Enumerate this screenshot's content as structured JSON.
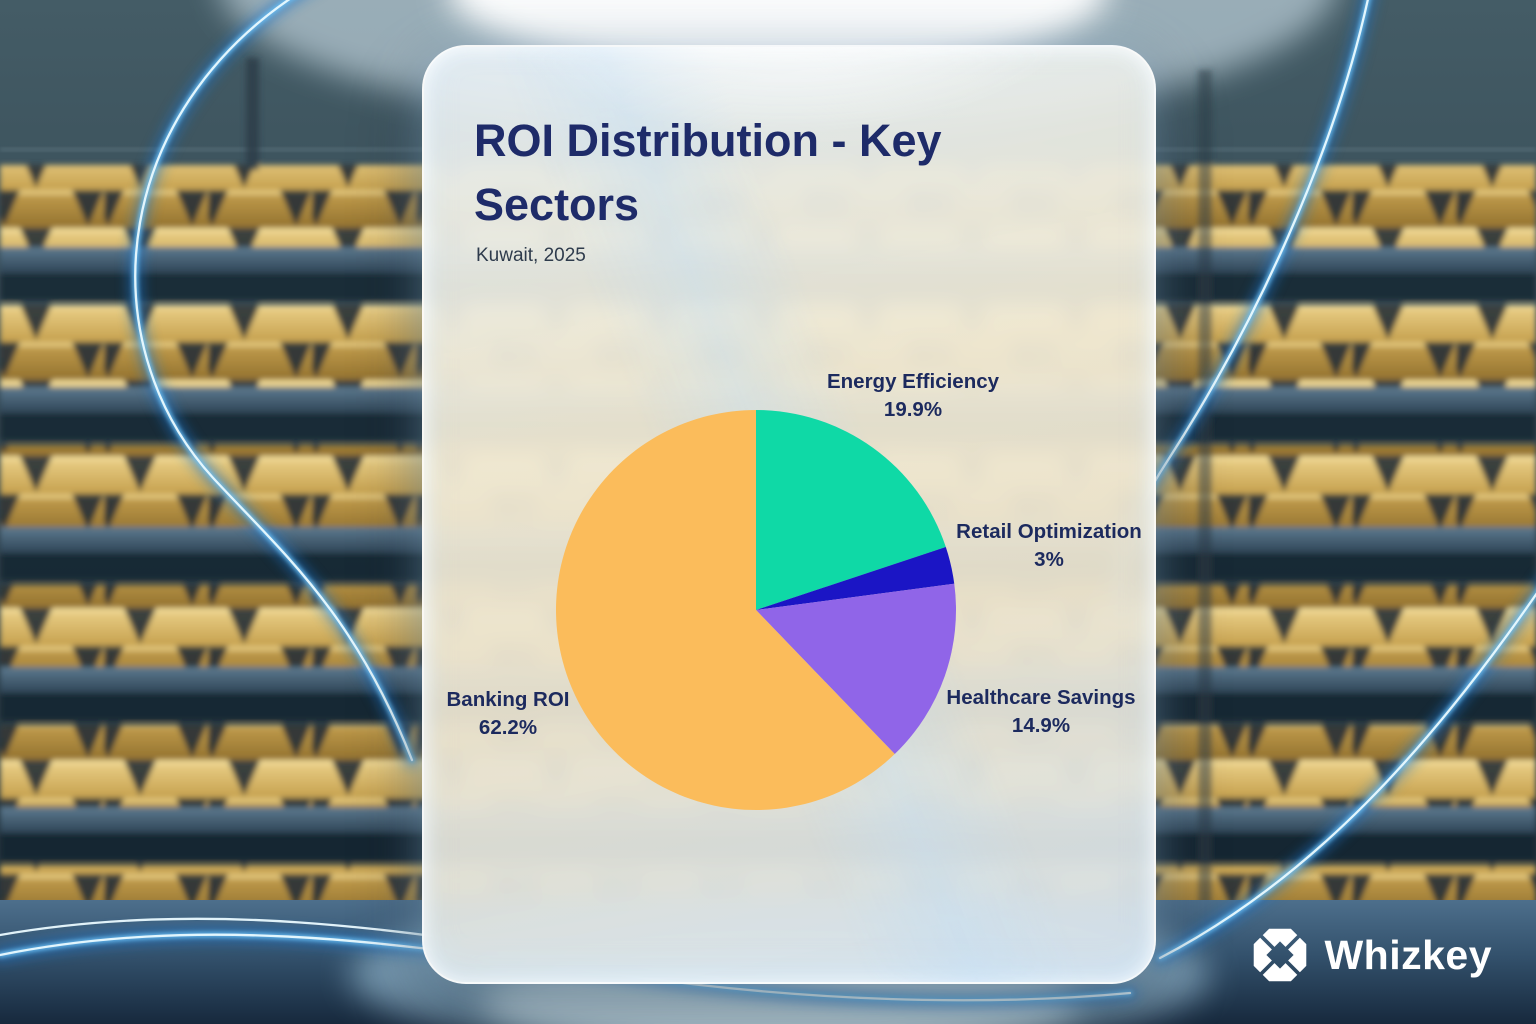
{
  "header": {
    "title_line1": "ROI Distribution - Key",
    "title_line2": "Sectors",
    "subtitle": "Kuwait, 2025"
  },
  "chart_data": {
    "type": "pie",
    "title": "ROI Distribution - Key Sectors",
    "subtitle": "Kuwait, 2025",
    "start_angle_deg": -90,
    "direction": "clockwise",
    "labels_position": "outside",
    "slices": [
      {
        "label": "Energy Efficiency",
        "value": 19.9,
        "pct": "19.9%",
        "color": "#0fd9a6"
      },
      {
        "label": "Retail Optimization",
        "value": 3,
        "pct": "3%",
        "color": "#1b15c5"
      },
      {
        "label": "Healthcare Savings",
        "value": 14.9,
        "pct": "14.9%",
        "color": "#9065e8"
      },
      {
        "label": "Banking ROI",
        "value": 62.2,
        "pct": "62.2%",
        "color": "#fbbc5b"
      }
    ]
  },
  "brand": {
    "name": "Whizkey",
    "icon": "aperture-icon"
  },
  "scene": {
    "background": "gold-vault-shelves",
    "streak_accent": "#6cc0f5",
    "card_text_color": "#1c2a5e"
  }
}
